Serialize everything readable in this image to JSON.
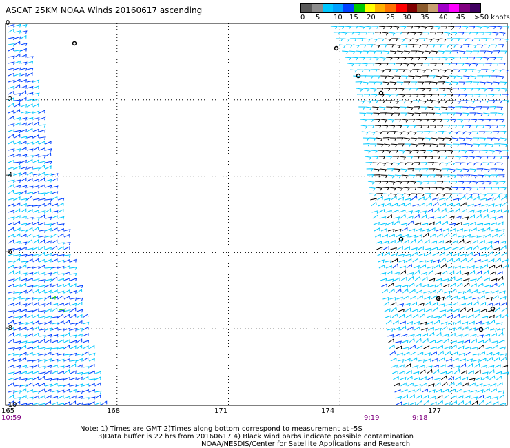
{
  "title": "ASCAT 25KM NOAA Winds 20160617 ascending",
  "colorbar": {
    "colors": [
      "#5a5a5a",
      "#8c8c8c",
      "#00c8ff",
      "#00a0ff",
      "#0040ff",
      "#00c800",
      "#ffff00",
      "#ffb000",
      "#ff7000",
      "#ff0000",
      "#800000",
      "#8b5a2b",
      "#c8a070",
      "#a000c8",
      "#ff00ff",
      "#800080",
      "#400060"
    ],
    "labels": [
      "0",
      "5",
      "10",
      "15",
      "20",
      "25",
      "30",
      "35",
      "40",
      "45",
      ">50 knots"
    ]
  },
  "y_ticks": [
    "0",
    "-2",
    "-4",
    "-6",
    "-8",
    "-10"
  ],
  "x_ticks": [
    "165",
    "168",
    "171",
    "174",
    "177"
  ],
  "pass_times": [
    "10:59",
    "9:19",
    "9:18"
  ],
  "notes": [
    "Note: 1) Times are GMT 2)Times along bottom correspond to measurement at -5S",
    "3)Data buffer is 22 hrs from 20160617 4) Black wind barbs indicate possible contamination",
    "NOAA/NESDIS/Center for Satellite Applications and Research"
  ],
  "map": {
    "lon_range": [
      165,
      178.5
    ],
    "lat_range": [
      -10,
      0
    ],
    "wind_color_light": "#00c8ff",
    "wind_color_medium": "#0040ff",
    "wind_color_contaminated": "#000000",
    "wind_color_green": "#00c800"
  }
}
